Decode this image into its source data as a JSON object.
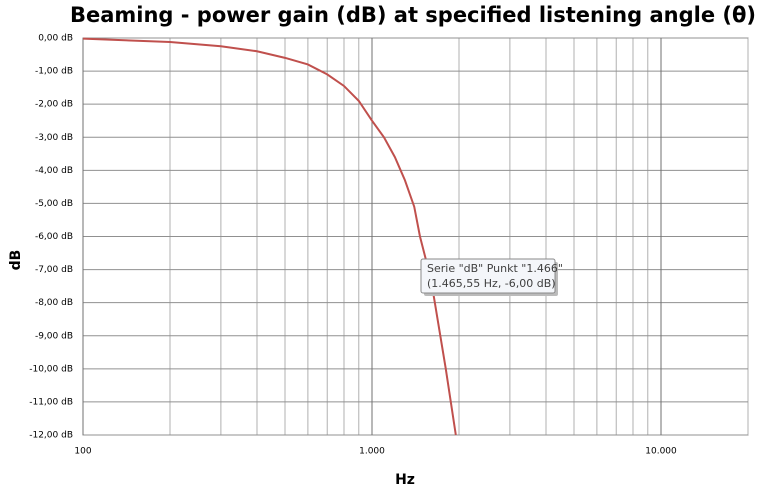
{
  "chart_data": {
    "type": "line",
    "title": "Beaming - power gain (dB) at specified listening angle (θ)",
    "x_label": "Hz",
    "y_label": "dB",
    "log_x": true,
    "grid": true,
    "xlim": [
      100,
      20000
    ],
    "ylim": [
      -12,
      0
    ],
    "xticks": [
      100,
      {
        "value": 1000,
        "label": "1.000"
      },
      {
        "value": 10000,
        "label": "10.000"
      }
    ],
    "xminorticks": [
      200,
      300,
      400,
      500,
      600,
      700,
      800,
      900,
      2000,
      3000,
      4000,
      5000,
      6000,
      7000,
      8000,
      9000,
      20000
    ],
    "yticks": [
      {
        "value": 0,
        "label": "0,00 dB"
      },
      {
        "value": -1,
        "label": "-1,00 dB"
      },
      {
        "value": -2,
        "label": "-2,00 dB"
      },
      {
        "value": -3,
        "label": "-3,00 dB"
      },
      {
        "value": -4,
        "label": "-4,00 dB"
      },
      {
        "value": -5,
        "label": "-5,00 dB"
      },
      {
        "value": -6,
        "label": "-6,00 dB"
      },
      {
        "value": -7,
        "label": "-7,00 dB"
      },
      {
        "value": -8,
        "label": "-8,00 dB"
      },
      {
        "value": -9,
        "label": "-9,00 dB"
      },
      {
        "value": -10,
        "label": "-10,00 dB"
      },
      {
        "value": -11,
        "label": "-11,00 dB"
      },
      {
        "value": -12,
        "label": "-12,00 dB"
      }
    ],
    "x": [
      100,
      200,
      300,
      400,
      500,
      600,
      700,
      800,
      900,
      1000,
      1100,
      1200,
      1300,
      1400,
      1465.55,
      1600,
      1800,
      1950
    ],
    "series": [
      {
        "name": "dB",
        "color": "#c0504d",
        "values": [
          -0.02,
          -0.12,
          -0.25,
          -0.4,
          -0.6,
          -0.8,
          -1.1,
          -1.45,
          -1.9,
          -2.5,
          -3.0,
          -3.6,
          -4.3,
          -5.1,
          -6.0,
          -7.3,
          -10.0,
          -12.0
        ]
      }
    ],
    "tooltip": {
      "lines": [
        "Serie \"dB\" Punkt \"1.466\"",
        "(1.465,55 Hz, -6,00 dB)"
      ]
    }
  }
}
